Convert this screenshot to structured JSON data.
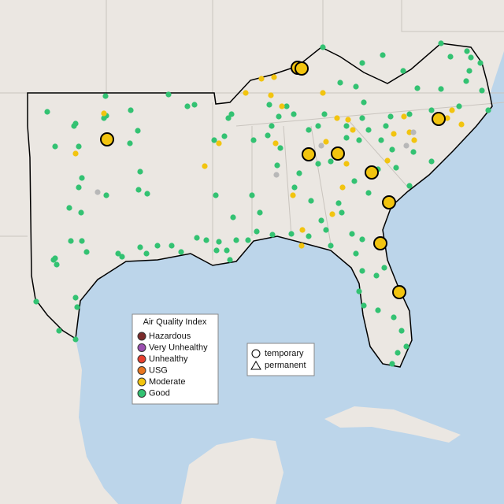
{
  "legend": {
    "title": "Air Quality Index",
    "items": [
      {
        "label": "Hazardous",
        "color": "#7a2b2b"
      },
      {
        "label": "Very Unhealthy",
        "color": "#9b4fb0"
      },
      {
        "label": "Unhealthy",
        "color": "#e8402f"
      },
      {
        "label": "USG",
        "color": "#e8761f"
      },
      {
        "label": "Moderate",
        "color": "#f2c40f"
      },
      {
        "label": "Good",
        "color": "#33c272"
      }
    ]
  },
  "shape_legend": {
    "items": [
      "temporary",
      "permanent"
    ]
  }
}
